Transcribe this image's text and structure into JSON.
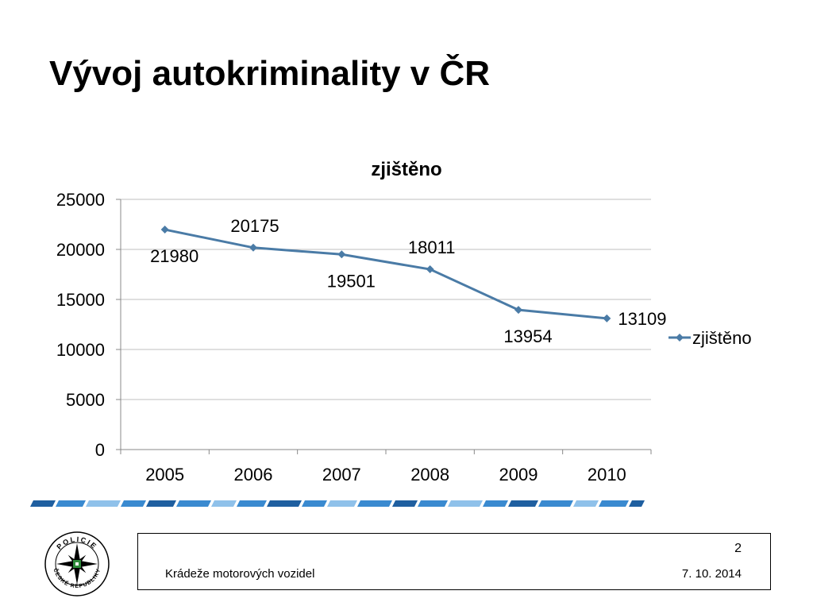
{
  "slide": {
    "title": "Vývoj autokriminality v ČR",
    "page_number": "2",
    "footer_text": "Krádeže motorových vozidel",
    "date": "7. 10. 2014"
  },
  "logo": {
    "text_top": "POLICIE",
    "text_bottom": "ČESKÉ REPUBLIKY",
    "icon": "police-star-emblem"
  },
  "colors": {
    "series_line": "#4a7ba6",
    "grid": "#bfbfbf",
    "stripe_dark": "#1f5fa0",
    "stripe_mid": "#3a8ad0",
    "stripe_light": "#8fc1ea"
  },
  "chart_data": {
    "type": "line",
    "title": "zjištěno",
    "categories": [
      "2005",
      "2006",
      "2007",
      "2008",
      "2009",
      "2010"
    ],
    "series": [
      {
        "name": "zjištěno",
        "values": [
          21980,
          20175,
          19501,
          18011,
          13954,
          13109
        ]
      }
    ],
    "data_labels": [
      "21980",
      "20175",
      "19501",
      "18011",
      "13954",
      "13109"
    ],
    "y_ticks": [
      "0",
      "5000",
      "10000",
      "15000",
      "20000",
      "25000"
    ],
    "ylim": [
      0,
      25000
    ],
    "grid": true,
    "legend": "right",
    "marker": "diamond"
  }
}
